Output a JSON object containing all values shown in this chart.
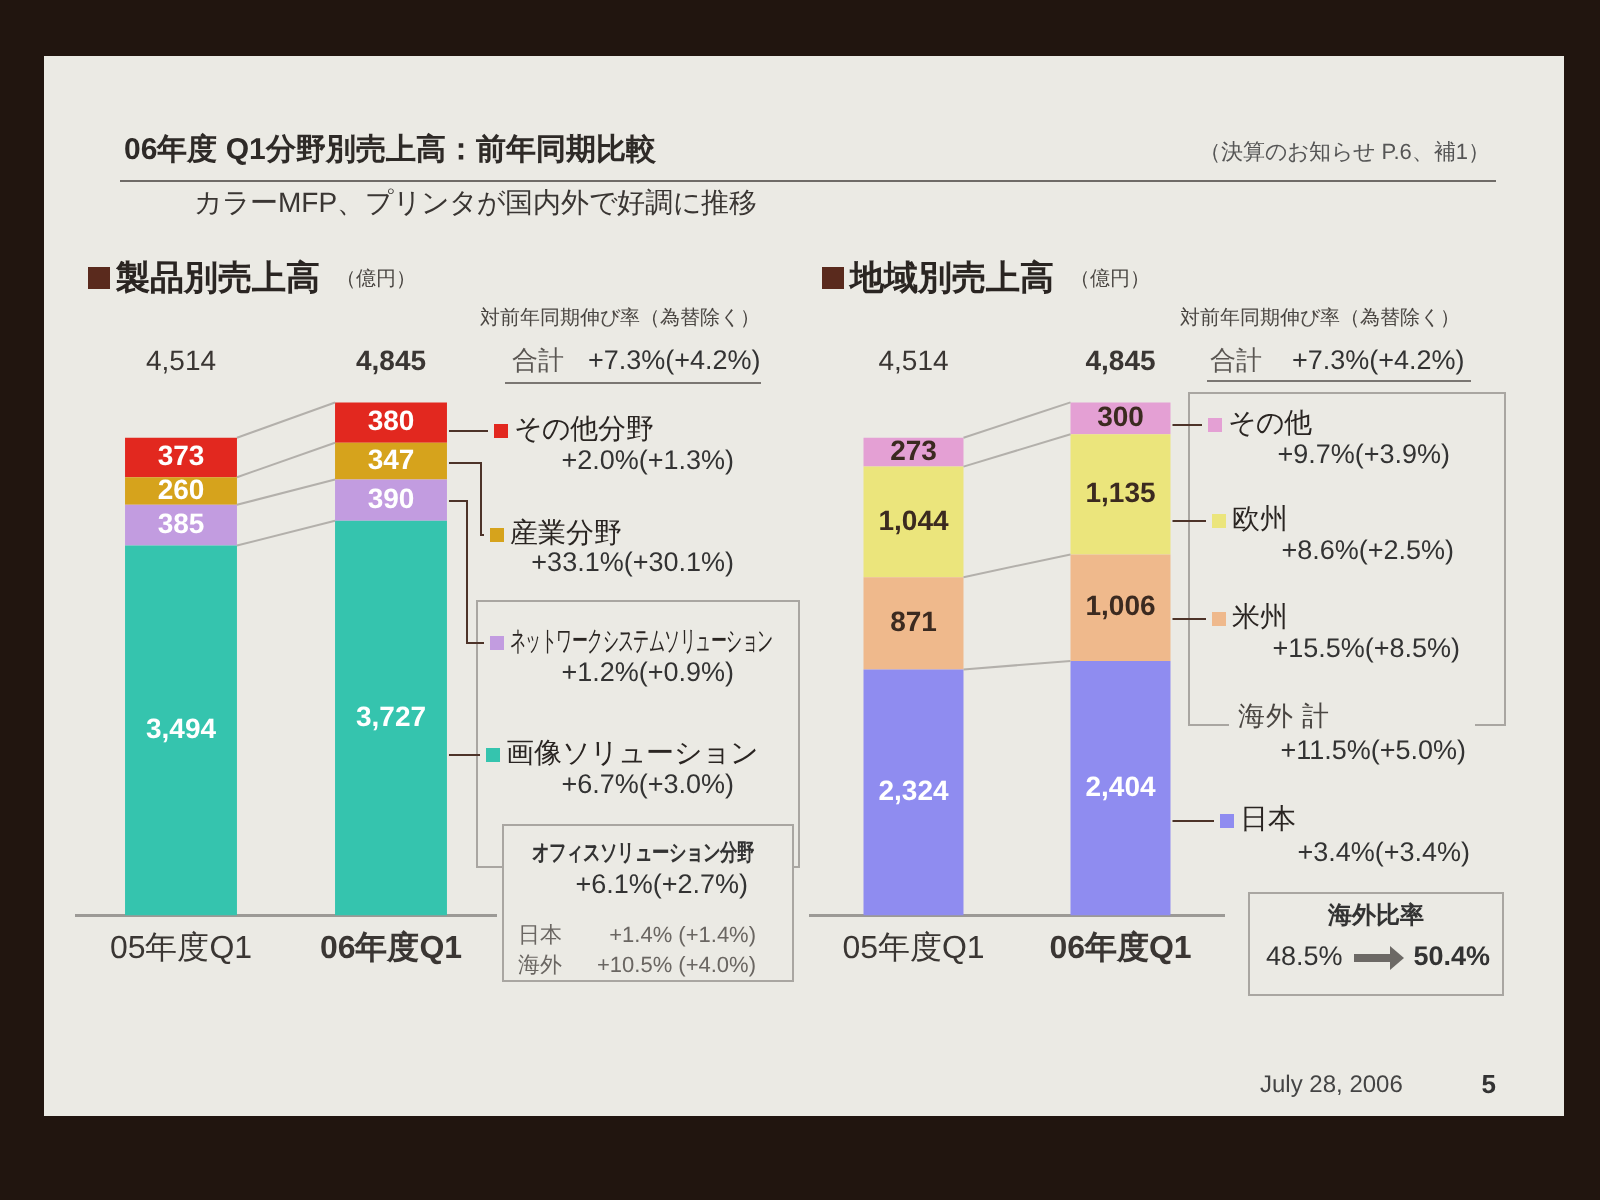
{
  "chart_data": [
    {
      "type": "other",
      "title": "06年度 Q1分野別売上高：前年同期比較",
      "subtitle": "カラーMFP、プリンタが国内外で好調に推移",
      "annotations": [
        "（決算のお知らせ P.6、補1）",
        "July 28, 2006",
        "5"
      ]
    },
    {
      "type": "bar",
      "title": "製品別売上高",
      "ylabel": "（億円）",
      "categories": [
        "05年度Q1",
        "06年度Q1"
      ],
      "stacked": true,
      "tick_labels": "x",
      "legend": "right",
      "totals": [
        "4,514",
        "4,845"
      ],
      "series": [
        {
          "name": "画像ソリューション",
          "color": "#35c4ae",
          "values": [
            3494,
            3727
          ],
          "value_labels": [
            "3,494",
            "3,727"
          ]
        },
        {
          "name": "ネットワークシステムソリューション",
          "color": "#c29ce0",
          "values": [
            385,
            390
          ],
          "value_labels": [
            "385",
            "390"
          ]
        },
        {
          "name": "産業分野",
          "color": "#d6a31c",
          "values": [
            260,
            347
          ],
          "value_labels": [
            "260",
            "347"
          ]
        },
        {
          "name": "その他分野",
          "color": "#e2281f",
          "values": [
            373,
            380
          ],
          "value_labels": [
            "373",
            "380"
          ]
        }
      ],
      "annotations": [
        "対前年同期伸び率（為替除く）",
        "合計",
        "+7.3%(+4.2%)",
        "+2.0%(+1.3%)",
        "+33.1%(+30.1%)",
        "+1.2%(+0.9%)",
        "+6.7%(+3.0%)",
        "オフィスソリューション分野",
        "+6.1%(+2.7%)",
        "日本",
        "+1.4% (+1.4%)",
        "海外",
        "+10.5% (+4.0%)"
      ]
    },
    {
      "type": "bar",
      "title": "地域別売上高",
      "ylabel": "（億円）",
      "categories": [
        "05年度Q1",
        "06年度Q1"
      ],
      "stacked": true,
      "tick_labels": "x",
      "legend": "right",
      "totals": [
        "4,514",
        "4,845"
      ],
      "series": [
        {
          "name": "日本",
          "color": "#8f8cf0",
          "values": [
            2324,
            2404
          ],
          "value_labels": [
            "2,324",
            "2,404"
          ]
        },
        {
          "name": "米州",
          "color": "#efb98c",
          "values": [
            871,
            1006
          ],
          "value_labels": [
            "871",
            "1,006"
          ]
        },
        {
          "name": "欧州",
          "color": "#ebe57c",
          "values": [
            1044,
            1135
          ],
          "value_labels": [
            "1,044",
            "1,135"
          ]
        },
        {
          "name": "その他",
          "color": "#e4a0d4",
          "values": [
            273,
            300
          ],
          "value_labels": [
            "273",
            "300"
          ]
        }
      ],
      "annotations": [
        "対前年同期伸び率（為替除く）",
        "合計",
        "+7.3%(+4.2%)",
        "+9.7%(+3.9%)",
        "+8.6%(+2.5%)",
        "+15.5%(+8.5%)",
        "海外 計",
        "+11.5%(+5.0%)",
        "+3.4%(+3.4%)",
        "海外比率",
        "48.5%",
        "50.4%"
      ]
    }
  ]
}
